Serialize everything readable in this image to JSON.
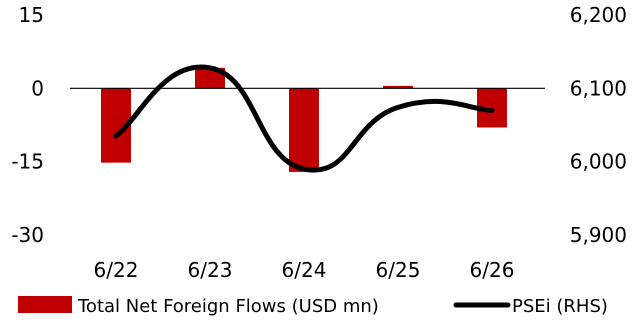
{
  "chart_data": {
    "type": "bar",
    "categories": [
      "6/22",
      "6/23",
      "6/24",
      "6/25",
      "6/26"
    ],
    "series": [
      {
        "name": "Total Net Foreign Flows (USD mn)",
        "type": "bar",
        "axis": "left",
        "color": "#c00000",
        "values": [
          -15.2,
          4.2,
          -17.1,
          0.5,
          -8.0
        ]
      },
      {
        "name": "PSEi (RHS)",
        "type": "line",
        "axis": "right",
        "color": "#000000",
        "values": [
          6035,
          6128,
          5990,
          6074,
          6070
        ]
      }
    ],
    "y_left": {
      "ylim": [
        -30,
        15
      ],
      "ticks": [
        15,
        0,
        -15,
        -30
      ],
      "tick_labels": [
        "15",
        "0",
        "-15",
        "-30"
      ]
    },
    "y_right": {
      "ylim": [
        5900,
        6200
      ],
      "ticks": [
        6200,
        6100,
        6000,
        5900
      ],
      "tick_labels": [
        "6,200",
        "6,100",
        "6,000",
        "5,900"
      ]
    },
    "legend": "bottom",
    "grid": false
  }
}
